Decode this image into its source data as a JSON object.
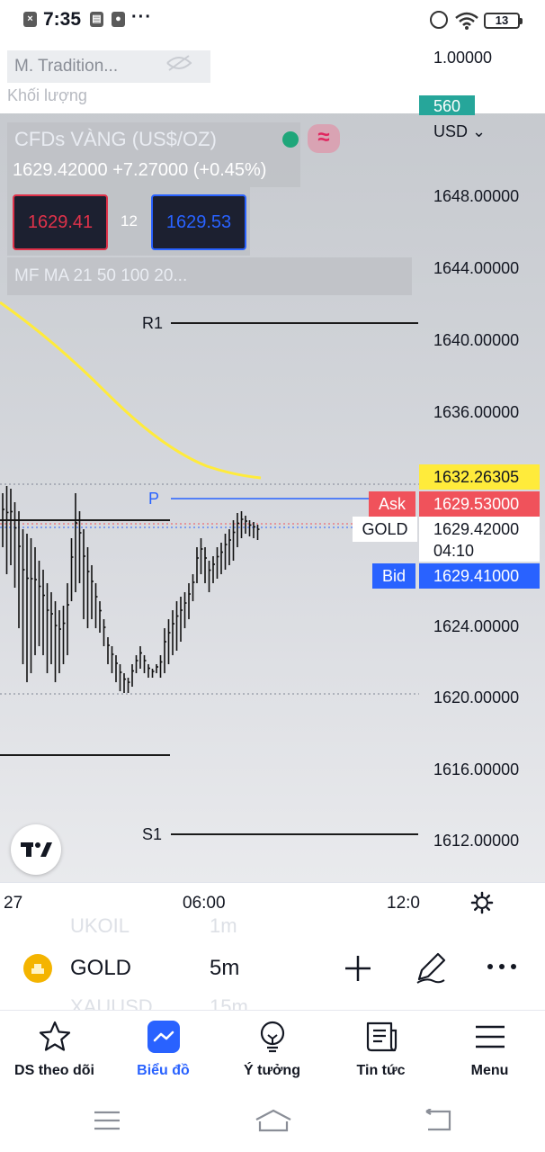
{
  "status_bar": {
    "time": "7:35",
    "more": "···",
    "battery": "13"
  },
  "top_pane": {
    "indicator_label": "M. Tradition...",
    "sub_label": "Khối lượng",
    "axis_value": "1.00000",
    "volume_badge": "560",
    "volume_badge_color": "#26a69a"
  },
  "symbol_info": {
    "title": "CFDs VÀNG (US$/OZ)",
    "price_line": "1629.42000  +7.27000 (+0.45%)",
    "sell_price": "1629.41",
    "spread": "12",
    "buy_price": "1629.53",
    "indicators": "MF MA 21 50 100 20..."
  },
  "price_axis": {
    "currency": "USD",
    "labels": [
      "1648.00000",
      "1644.00000",
      "1640.00000",
      "1636.00000",
      "1624.00000",
      "1620.00000",
      "1616.00000",
      "1612.00000"
    ]
  },
  "pivots": {
    "r1": "R1",
    "p": "P",
    "s1": "S1"
  },
  "price_tags": {
    "ma_value": "1632.26305",
    "ask_label": "Ask",
    "ask_value": "1629.53000",
    "symbol_label": "GOLD",
    "last_value": "1629.42000",
    "countdown": "04:10",
    "bid_label": "Bid",
    "bid_value": "1629.41000"
  },
  "colors": {
    "up": "#26a69a",
    "sell": "#e0324a",
    "buy": "#2962ff",
    "ask": "#f0525b",
    "ma_line": "#ffeb3b",
    "accent": "#2962ff"
  },
  "time_axis": {
    "labels": [
      "27",
      "06:00",
      "12:0"
    ]
  },
  "toolbar": {
    "ghost_above": [
      "UKOIL",
      "1m"
    ],
    "symbol": "GOLD",
    "interval": "5m",
    "ghost_below": [
      "XAUUSD",
      "15m"
    ]
  },
  "bottom_nav": {
    "items": [
      {
        "label": "DS theo dõi",
        "icon": "star-icon"
      },
      {
        "label": "Biểu đồ",
        "icon": "chart-icon"
      },
      {
        "label": "Ý tưởng",
        "icon": "lightbulb-icon"
      },
      {
        "label": "Tin tức",
        "icon": "news-icon"
      },
      {
        "label": "Menu",
        "icon": "hamburger-icon"
      }
    ],
    "active": "Biểu đồ"
  }
}
